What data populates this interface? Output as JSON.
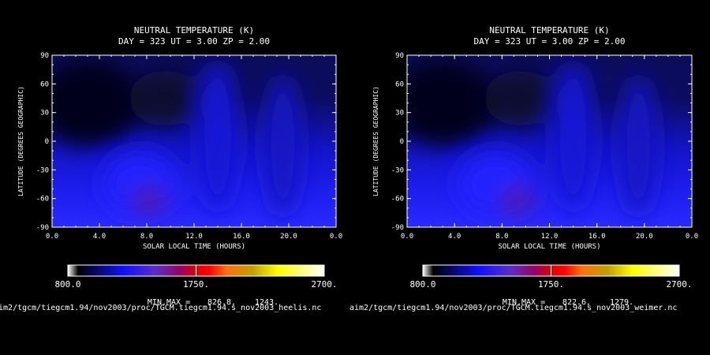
{
  "chart_data": [
    {
      "type": "heatmap",
      "title": "NEUTRAL TEMPERATURE (K)",
      "subtitle": "DAY = 323  UT =  3.00  ZP =   2.00",
      "xlabel": "SOLAR LOCAL TIME (HOURS)",
      "ylabel": "LATITUDE (DEGREES GEOGRAPHIC)",
      "xticks": [
        "0.0",
        "4.0",
        "8.0",
        "12.0",
        "16.0",
        "20.0",
        "0.0"
      ],
      "yticks": [
        "90",
        "60",
        "30",
        "0",
        "-30",
        "-60",
        "-90"
      ],
      "xlim": [
        0,
        24
      ],
      "ylim": [
        -90,
        90
      ],
      "colorbar": {
        "min_label": "800.0",
        "mid_label": "1750.",
        "max_label": "2700.",
        "range": [
          800,
          2700
        ]
      },
      "minmax_label": "MIN,MAX =",
      "min_value": "826.8,",
      "max_value": "1243.",
      "source_path": "aim2/tgcm/tiegcm1.94/nov2003/proc/TGCM.tiegcm1.94.s_nov2003_heelis.nc",
      "hot_spot": {
        "slt": 8.2,
        "lat": -62,
        "temp": 1243
      }
    },
    {
      "type": "heatmap",
      "title": "NEUTRAL TEMPERATURE (K)",
      "subtitle": "DAY = 323  UT =  3.00  ZP =   2.00",
      "xlabel": "SOLAR LOCAL TIME (HOURS)",
      "ylabel": "LATITUDE (DEGREES GEOGRAPHIC)",
      "xticks": [
        "0.0",
        "4.0",
        "8.0",
        "12.0",
        "16.0",
        "20.0",
        "0.0"
      ],
      "yticks": [
        "90",
        "60",
        "30",
        "0",
        "-30",
        "-60",
        "-90"
      ],
      "xlim": [
        0,
        24
      ],
      "ylim": [
        -90,
        90
      ],
      "colorbar": {
        "min_label": "800.0",
        "mid_label": "1750.",
        "max_label": "2700.",
        "range": [
          800,
          2700
        ]
      },
      "minmax_label": "MIN,MAX =",
      "min_value": "822.6,",
      "max_value": "1279.",
      "source_path": "aim2/tgcm/tiegcm1.94/nov2003/proc/TGCM.tiegcm1.94.s_nov2003_weimer.nc",
      "hot_spot": {
        "slt": 9.3,
        "lat": -62,
        "temp": 1279
      }
    }
  ]
}
